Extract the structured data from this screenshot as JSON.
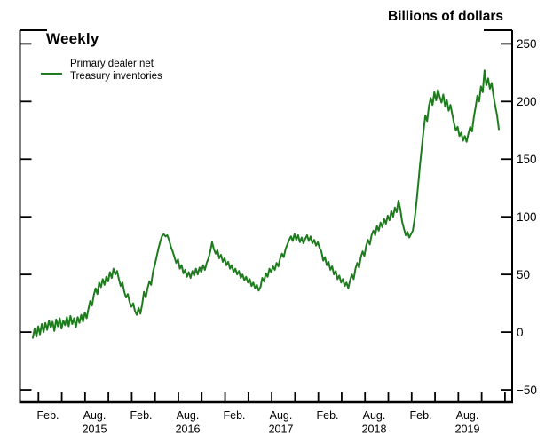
{
  "header": {
    "unit_label": "Billions of dollars"
  },
  "chart_title": "Weekly",
  "legend": {
    "line1": "Primary dealer net",
    "line2": "Treasury inventories"
  },
  "colors": {
    "series": "#1e7b1e",
    "axis": "#000000",
    "text": "#000000"
  },
  "chart_data": {
    "type": "line",
    "title": "Weekly",
    "ylabel": "Billions of dollars",
    "frequency": "weekly",
    "grid": false,
    "legend_position": "top-left",
    "ylim": [
      -50,
      250
    ],
    "y_ticks": [
      250,
      200,
      150,
      100,
      50,
      0,
      -50
    ],
    "x_labels": [
      {
        "month": "Feb.",
        "year": ""
      },
      {
        "month": "Aug.",
        "year": "2015"
      },
      {
        "month": "Feb.",
        "year": ""
      },
      {
        "month": "Aug.",
        "year": "2016"
      },
      {
        "month": "Feb.",
        "year": ""
      },
      {
        "month": "Aug.",
        "year": "2017"
      },
      {
        "month": "Feb.",
        "year": ""
      },
      {
        "month": "Aug.",
        "year": "2018"
      },
      {
        "month": "Feb.",
        "year": ""
      },
      {
        "month": "Aug.",
        "year": "2019"
      }
    ],
    "series": [
      {
        "name": "Primary dealer net Treasury inventories",
        "values": [
          -5,
          3,
          -4,
          5,
          -2,
          7,
          0,
          8,
          2,
          10,
          4,
          9,
          1,
          11,
          5,
          12,
          3,
          10,
          6,
          13,
          5,
          14,
          7,
          12,
          4,
          13,
          8,
          15,
          9,
          17,
          12,
          20,
          27,
          23,
          32,
          38,
          33,
          43,
          39,
          46,
          41,
          48,
          44,
          52,
          47,
          55,
          50,
          53,
          46,
          40,
          43,
          35,
          30,
          33,
          26,
          22,
          25,
          18,
          15,
          21,
          16,
          24,
          35,
          30,
          38,
          44,
          41,
          52,
          58,
          65,
          72,
          78,
          83,
          85,
          83,
          84,
          80,
          74,
          70,
          65,
          60,
          63,
          55,
          58,
          51,
          54,
          48,
          52,
          47,
          53,
          49,
          55,
          50,
          56,
          52,
          58,
          54,
          60,
          64,
          70,
          78,
          72,
          68,
          71,
          64,
          67,
          61,
          64,
          58,
          61,
          55,
          58,
          52,
          55,
          50,
          53,
          47,
          50,
          45,
          48,
          43,
          46,
          40,
          43,
          38,
          41,
          36,
          39,
          47,
          44,
          51,
          48,
          55,
          52,
          57,
          54,
          60,
          57,
          64,
          68,
          65,
          72,
          76,
          80,
          83,
          79,
          85,
          80,
          84,
          78,
          82,
          77,
          81,
          84,
          79,
          83,
          77,
          80,
          75,
          78,
          73,
          70,
          62,
          65,
          58,
          61,
          54,
          57,
          50,
          53,
          46,
          49,
          43,
          46,
          40,
          43,
          38,
          45,
          50,
          46,
          55,
          60,
          56,
          65,
          70,
          66,
          75,
          80,
          76,
          84,
          88,
          84,
          92,
          88,
          95,
          91,
          98,
          94,
          101,
          97,
          105,
          100,
          108,
          104,
          114,
          107,
          96,
          90,
          84,
          87,
          82,
          85,
          88,
          98,
          112,
          128,
          145,
          160,
          175,
          188,
          183,
          196,
          203,
          197,
          208,
          201,
          210,
          204,
          199,
          206,
          196,
          201,
          192,
          197,
          189,
          181,
          175,
          178,
          170,
          173,
          166,
          170,
          165,
          172,
          178,
          174,
          186,
          195,
          205,
          200,
          213,
          208,
          227,
          214,
          220,
          211,
          216,
          205,
          196,
          188,
          176
        ]
      }
    ]
  }
}
